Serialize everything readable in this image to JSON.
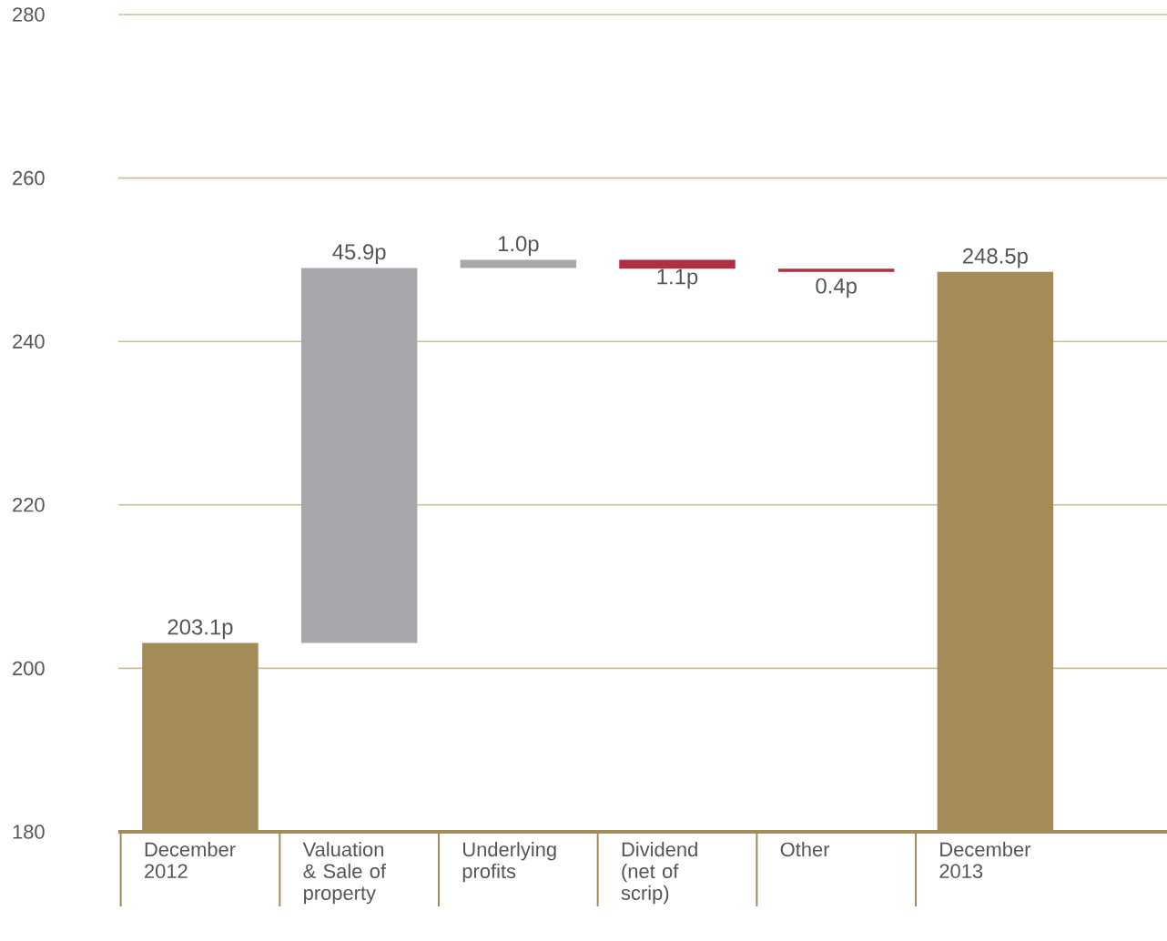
{
  "chart_data": {
    "type": "bar",
    "categories": [
      "December 2012",
      "Valuation & Sale of property",
      "Underlying profits",
      "Dividend (net of scrip)",
      "Other",
      "December 2013"
    ],
    "base": [
      180,
      203.1,
      249.0,
      250.0,
      248.9,
      180
    ],
    "values": [
      23.1,
      45.9,
      1.0,
      -1.1,
      -0.4,
      68.5
    ],
    "colors": [
      "#a38c5a",
      "#a7a8ab",
      "#a7a8ab",
      "#b03040",
      "#b03040",
      "#a38c5a"
    ],
    "value_labels": [
      "203.1p",
      "45.9p",
      "1.0p",
      "1.1p",
      "0.4p",
      "248.5p"
    ],
    "ylim": [
      180,
      280
    ],
    "yticks": [
      180,
      200,
      220,
      240,
      260,
      280
    ],
    "grid": "y"
  }
}
